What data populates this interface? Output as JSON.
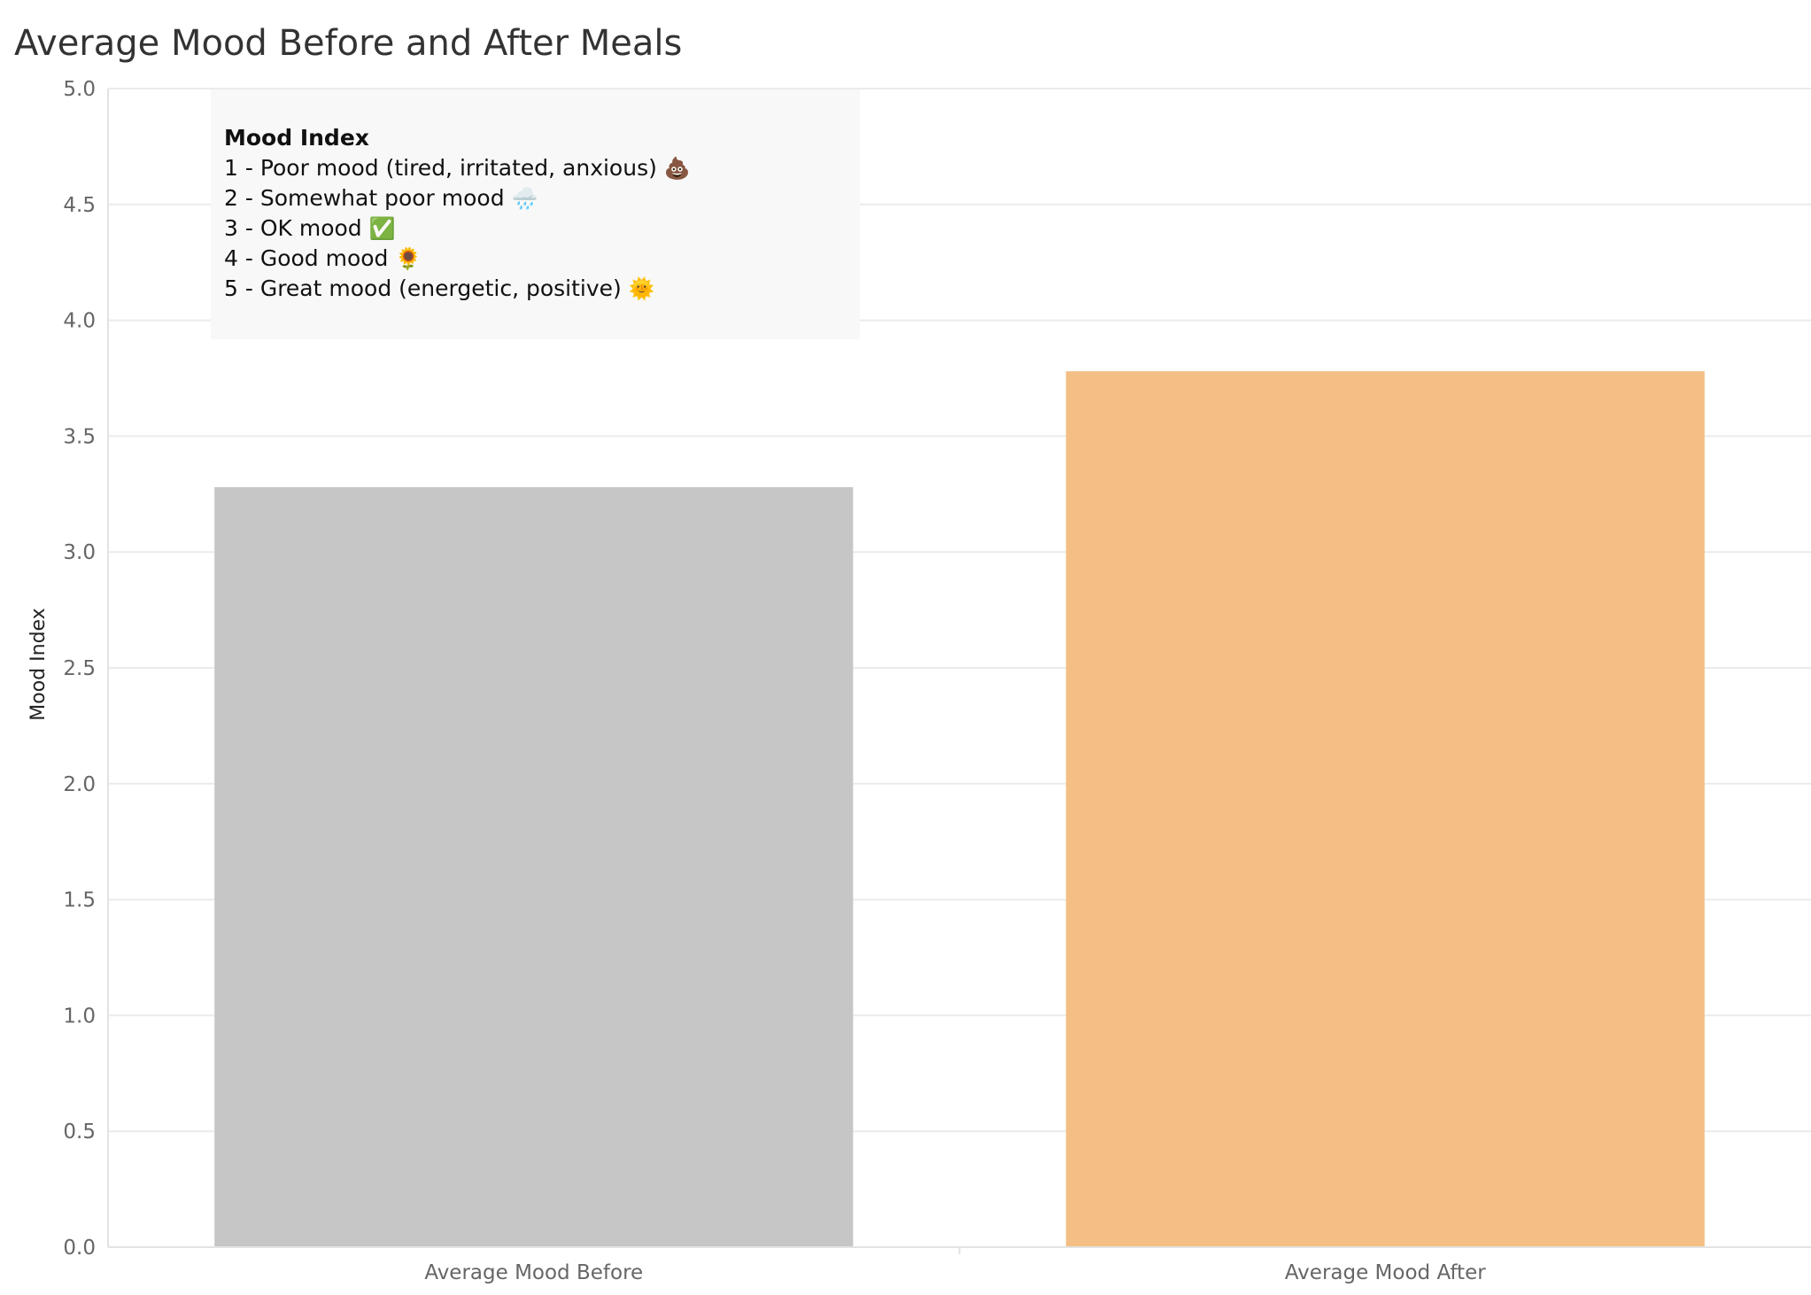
{
  "title": "Average Mood Before and After Meals",
  "chart_data": {
    "type": "bar",
    "categories": [
      "Average Mood Before",
      "Average Mood After"
    ],
    "values": [
      3.28,
      3.78
    ],
    "colors": [
      "#c6c6c6",
      "#f4bf84"
    ],
    "ylabel": "Mood Index",
    "ylim": [
      0,
      5
    ],
    "yticks": [
      "0.0",
      "0.5",
      "1.0",
      "1.5",
      "2.0",
      "2.5",
      "3.0",
      "3.5",
      "4.0",
      "4.5",
      "5.0"
    ],
    "grid": true
  },
  "legend_box": {
    "title": "Mood Index",
    "items": [
      {
        "text": "1 - Poor mood (tired, irritated, anxious)",
        "icon": "poop-icon",
        "emoji": "💩"
      },
      {
        "text": "2 - Somewhat poor mood",
        "icon": "rain-cloud-icon",
        "emoji": "🌧️"
      },
      {
        "text": "3 - OK mood",
        "icon": "check-mark-icon",
        "emoji": "✅"
      },
      {
        "text": "4 - Good mood",
        "icon": "sunflower-icon",
        "emoji": "🌻"
      },
      {
        "text": "5 - Great mood (energetic, positive)",
        "icon": "sun-face-icon",
        "emoji": "🌞"
      }
    ]
  }
}
